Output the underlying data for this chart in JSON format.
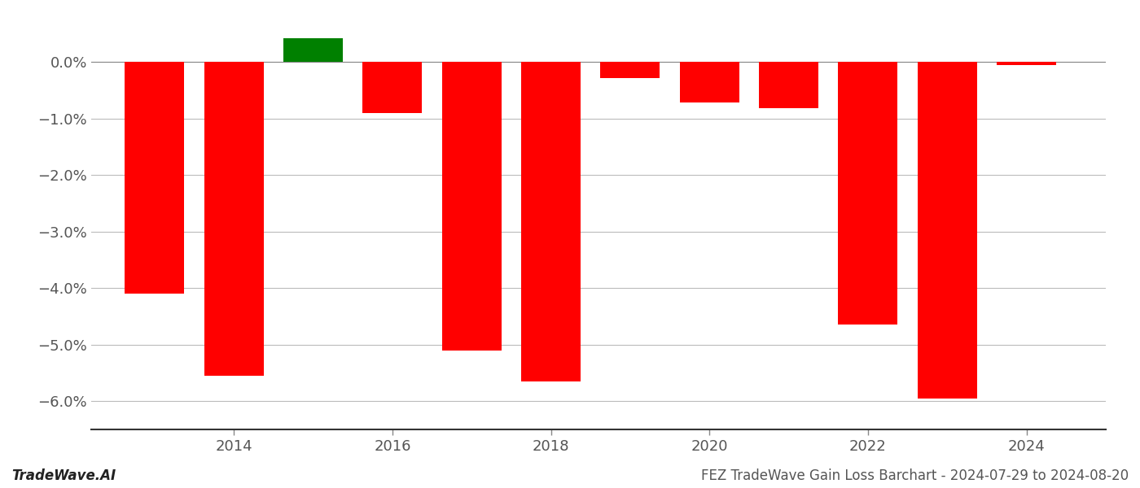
{
  "years": [
    2013,
    2014,
    2015,
    2016,
    2017,
    2018,
    2019,
    2020,
    2021,
    2022,
    2023,
    2024
  ],
  "values": [
    -4.1,
    -5.55,
    0.42,
    -0.9,
    -5.1,
    -5.65,
    -0.28,
    -0.72,
    -0.82,
    -4.65,
    -5.95,
    -0.05
  ],
  "bar_colors": [
    "#ff0000",
    "#ff0000",
    "#008000",
    "#ff0000",
    "#ff0000",
    "#ff0000",
    "#ff0000",
    "#ff0000",
    "#ff0000",
    "#ff0000",
    "#ff0000",
    "#ff0000"
  ],
  "ylim": [
    -6.5,
    0.75
  ],
  "yticks": [
    0.0,
    -1.0,
    -2.0,
    -3.0,
    -4.0,
    -5.0,
    -6.0
  ],
  "xticks": [
    2014,
    2016,
    2018,
    2020,
    2022,
    2024
  ],
  "xlim": [
    2012.2,
    2025.0
  ],
  "background_color": "#ffffff",
  "grid_color": "#bbbbbb",
  "bar_width": 0.75,
  "tick_label_color": "#555555",
  "tick_label_fontsize": 13,
  "footer_left": "TradeWave.AI",
  "footer_right": "FEZ TradeWave Gain Loss Barchart - 2024-07-29 to 2024-08-20",
  "footer_fontsize": 12
}
